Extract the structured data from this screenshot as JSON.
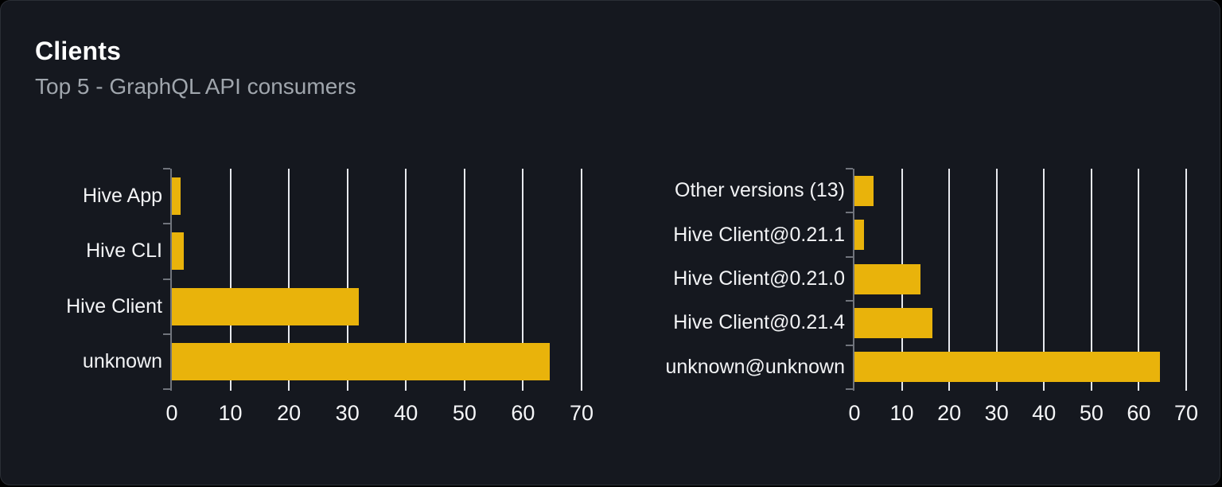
{
  "panel": {
    "title": "Clients",
    "subtitle": "Top 5 - GraphQL API consumers"
  },
  "colors": {
    "bar": "#e9b30b",
    "grid": "#e7e9ee",
    "axis": "#70747c",
    "card_background": "#15181f",
    "page_background": "#000000",
    "title": "#ffffff",
    "subtitle": "#a0a6ad",
    "category_label": "#f2f3f5",
    "tick_label": "#f5f6f8"
  },
  "chart_data": [
    {
      "type": "bar",
      "orientation": "horizontal",
      "name": "clients-by-name",
      "categories": [
        "Hive App",
        "Hive CLI",
        "Hive Client",
        "unknown"
      ],
      "values": [
        1.5,
        2,
        32,
        64.5
      ],
      "xlabel": "",
      "ylabel": "",
      "xlim": [
        0,
        70
      ],
      "xticks": [
        0,
        10,
        20,
        30,
        40,
        50,
        60,
        70
      ],
      "grid": "vertical",
      "legend": "none",
      "bar_color": "#e9b30b"
    },
    {
      "type": "bar",
      "orientation": "horizontal",
      "name": "clients-by-version",
      "categories": [
        "Other versions (13)",
        "Hive Client@0.21.1",
        "Hive Client@0.21.0",
        "Hive Client@0.21.4",
        "unknown@unknown"
      ],
      "values": [
        4,
        2,
        14,
        16.5,
        64.5
      ],
      "xlabel": "",
      "ylabel": "",
      "xlim": [
        0,
        70
      ],
      "xticks": [
        0,
        10,
        20,
        30,
        40,
        50,
        60,
        70
      ],
      "grid": "vertical",
      "legend": "none",
      "bar_color": "#e9b30b"
    }
  ]
}
